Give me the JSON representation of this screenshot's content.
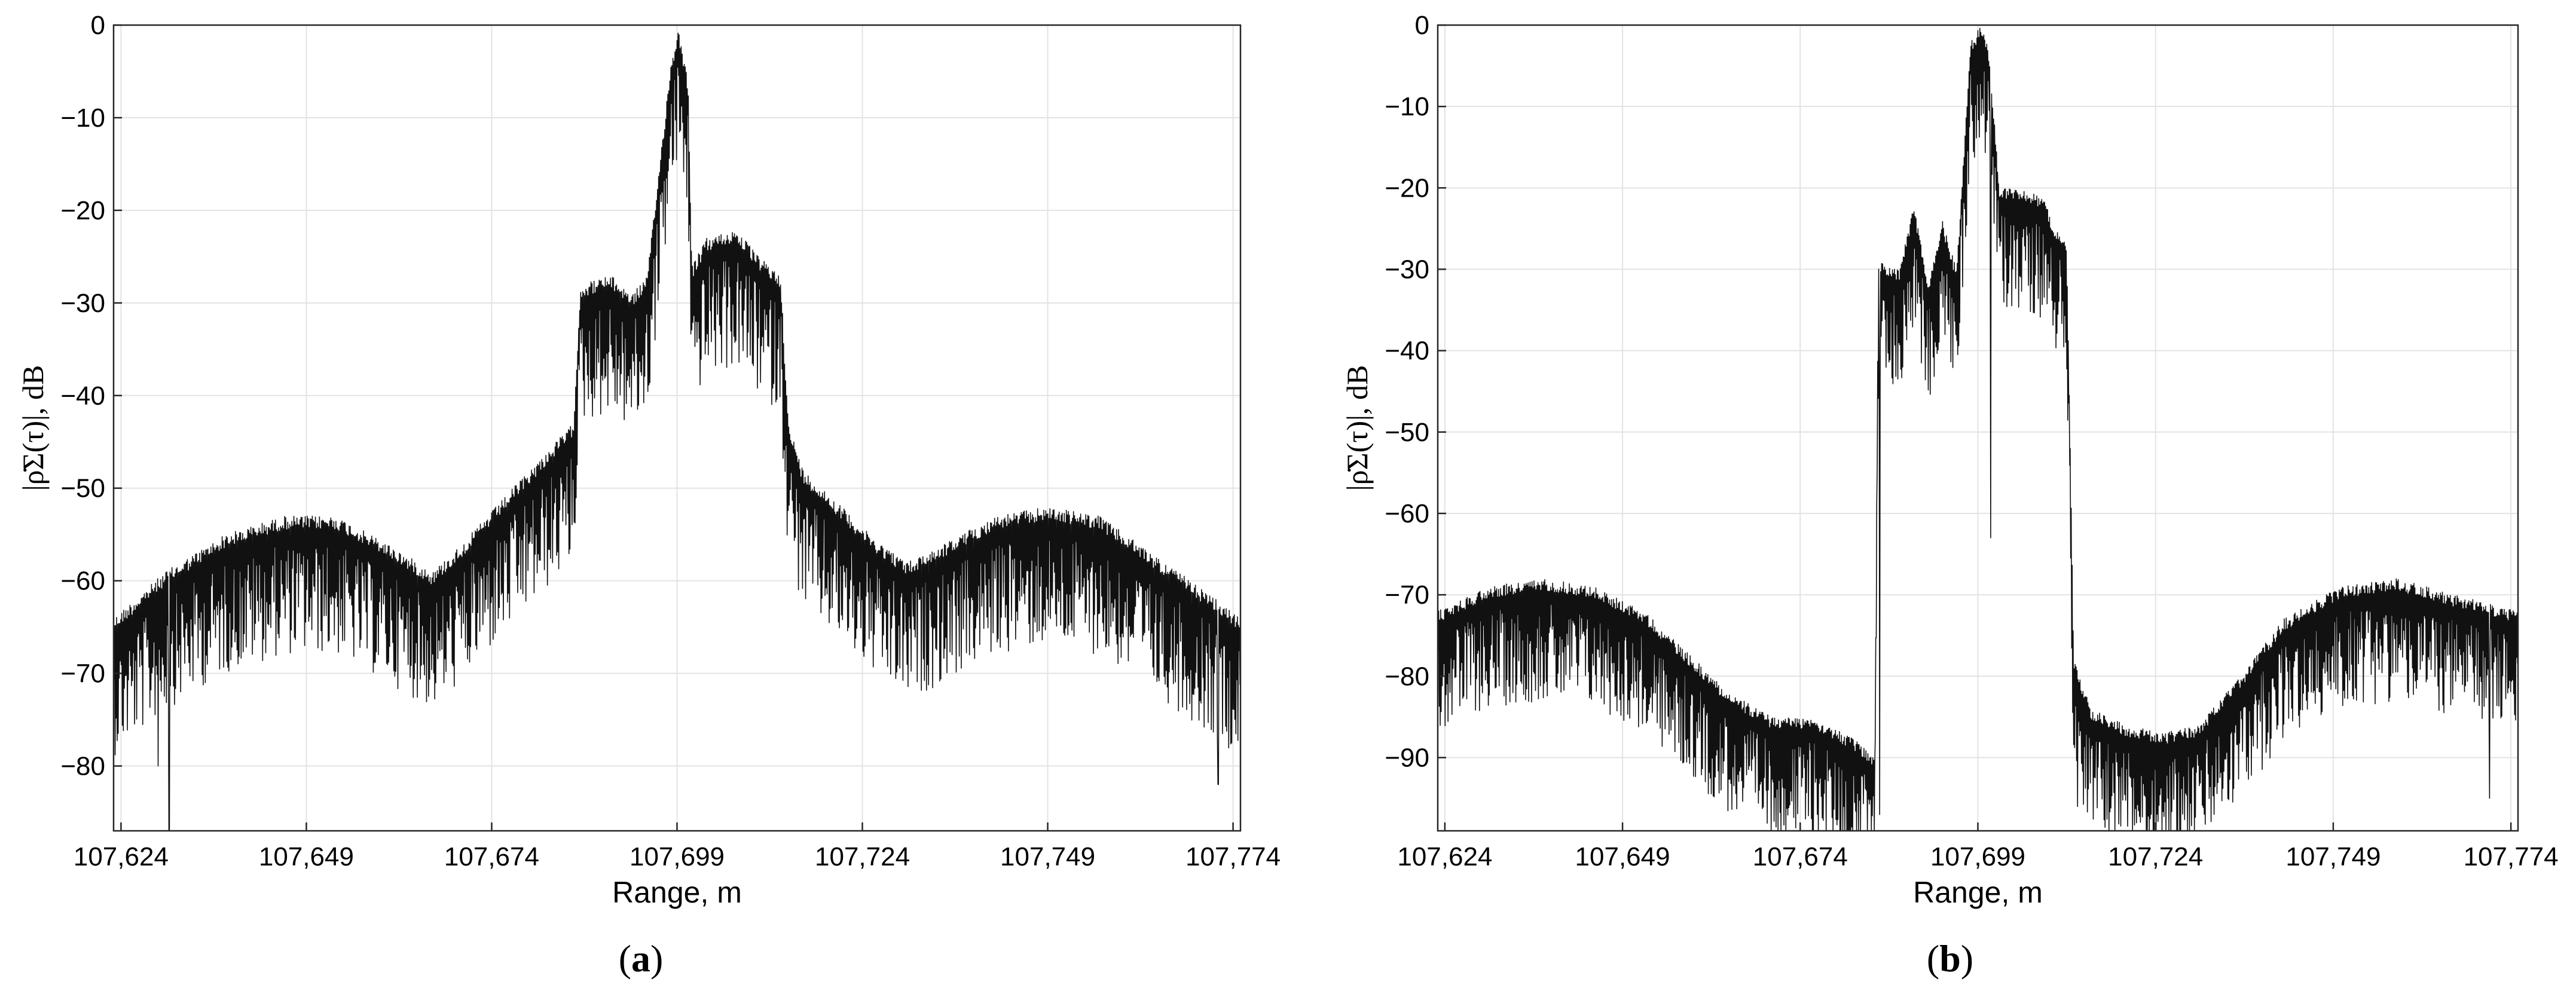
{
  "chart_data": [
    {
      "type": "line",
      "panel": "a",
      "caption_letter": "a",
      "xlabel": "Range, m",
      "ylabel": "|ρ̇Σ(τ)|, dB",
      "xlim": [
        107623,
        107775
      ],
      "ylim": [
        -87,
        0
      ],
      "xticks": [
        107624,
        107649,
        107674,
        107699,
        107724,
        107749,
        107774
      ],
      "xtick_labels": [
        "107,624",
        "107,649",
        "107,674",
        "107,699",
        "107,724",
        "107,749",
        "107,774"
      ],
      "yticks": [
        0,
        -10,
        -20,
        -30,
        -40,
        -50,
        -60,
        -70,
        -80
      ],
      "ytick_labels": [
        "0",
        "−10",
        "−20",
        "−30",
        "−40",
        "−50",
        "−60",
        "−70",
        "−80"
      ],
      "grid": true,
      "series": [
        {
          "color": "#111111",
          "envelope": [
            [
              107623,
              -64
            ],
            [
              107630,
              -59
            ],
            [
              107638,
              -55
            ],
            [
              107646,
              -53
            ],
            [
              107653,
              -53
            ],
            [
              107660,
              -56
            ],
            [
              107666,
              -59
            ],
            [
              107670,
              -56
            ],
            [
              107678,
              -49
            ],
            [
              107685,
              -43
            ],
            [
              107686,
              -28
            ],
            [
              107690,
              -27
            ],
            [
              107693,
              -29
            ],
            [
              107695,
              -27
            ],
            [
              107698,
              -5
            ],
            [
              107699.2,
              0
            ],
            [
              107699.6,
              -2
            ],
            [
              107700.5,
              -6
            ],
            [
              107701,
              -26
            ],
            [
              107703,
              -23
            ],
            [
              107707,
              -22
            ],
            [
              107710,
              -25
            ],
            [
              107713,
              -27
            ],
            [
              107714,
              -43
            ],
            [
              107716,
              -48
            ],
            [
              107720,
              -51
            ],
            [
              107725,
              -55
            ],
            [
              107730,
              -58
            ],
            [
              107735,
              -56
            ],
            [
              107742,
              -53
            ],
            [
              107749,
              -52
            ],
            [
              107756,
              -53
            ],
            [
              107763,
              -57
            ],
            [
              107770,
              -61
            ],
            [
              107775,
              -64
            ]
          ],
          "deep_nulls": [
            [
              107629,
              -80
            ],
            [
              107630.5,
              -87
            ],
            [
              107772,
              -82
            ]
          ]
        }
      ]
    },
    {
      "type": "line",
      "panel": "b",
      "caption_letter": "b",
      "xlabel": "Range, m",
      "ylabel": "|ρ̇Σ(τ)|, dB",
      "xlim": [
        107623,
        107775
      ],
      "ylim": [
        -99,
        0
      ],
      "xticks": [
        107624,
        107649,
        107674,
        107699,
        107724,
        107749,
        107774
      ],
      "xtick_labels": [
        "107,624",
        "107,649",
        "107,674",
        "107,699",
        "107,724",
        "107,749",
        "107,774"
      ],
      "yticks": [
        0,
        -10,
        -20,
        -30,
        -40,
        -50,
        -60,
        -70,
        -80,
        -90
      ],
      "ytick_labels": [
        "0",
        "−10",
        "−20",
        "−30",
        "−40",
        "−50",
        "−60",
        "−70",
        "−80",
        "−90"
      ],
      "grid": true,
      "series": [
        {
          "color": "#111111",
          "envelope": [
            [
              107623,
              -72
            ],
            [
              107630,
              -69
            ],
            [
              107638,
              -68
            ],
            [
              107645,
              -69
            ],
            [
              107652,
              -72
            ],
            [
              107658,
              -77
            ],
            [
              107664,
              -82
            ],
            [
              107670,
              -85
            ],
            [
              107676,
              -85
            ],
            [
              107682,
              -88
            ],
            [
              107684.5,
              -90
            ],
            [
              107685,
              -29
            ],
            [
              107688,
              -30
            ],
            [
              107690,
              -22
            ],
            [
              107692,
              -32
            ],
            [
              107694,
              -24
            ],
            [
              107696,
              -30
            ],
            [
              107698,
              -2
            ],
            [
              107699.5,
              0
            ],
            [
              107700.5,
              -3
            ],
            [
              107701.2,
              -10
            ],
            [
              107702,
              -20
            ],
            [
              107705,
              -20
            ],
            [
              107708,
              -21
            ],
            [
              107710,
              -25
            ],
            [
              107711.5,
              -27
            ],
            [
              107712.5,
              -78
            ],
            [
              107715,
              -84
            ],
            [
              107720,
              -86
            ],
            [
              107725,
              -87
            ],
            [
              107730,
              -86
            ],
            [
              107736,
              -80
            ],
            [
              107742,
              -73
            ],
            [
              107750,
              -69
            ],
            [
              107758,
              -68
            ],
            [
              107766,
              -70
            ],
            [
              107775,
              -72
            ]
          ],
          "deep_nulls": [
            [
              107685.2,
              -97
            ],
            [
              107700.8,
              -63
            ],
            [
              107713,
              -96
            ],
            [
              107771,
              -95
            ]
          ]
        }
      ]
    }
  ]
}
